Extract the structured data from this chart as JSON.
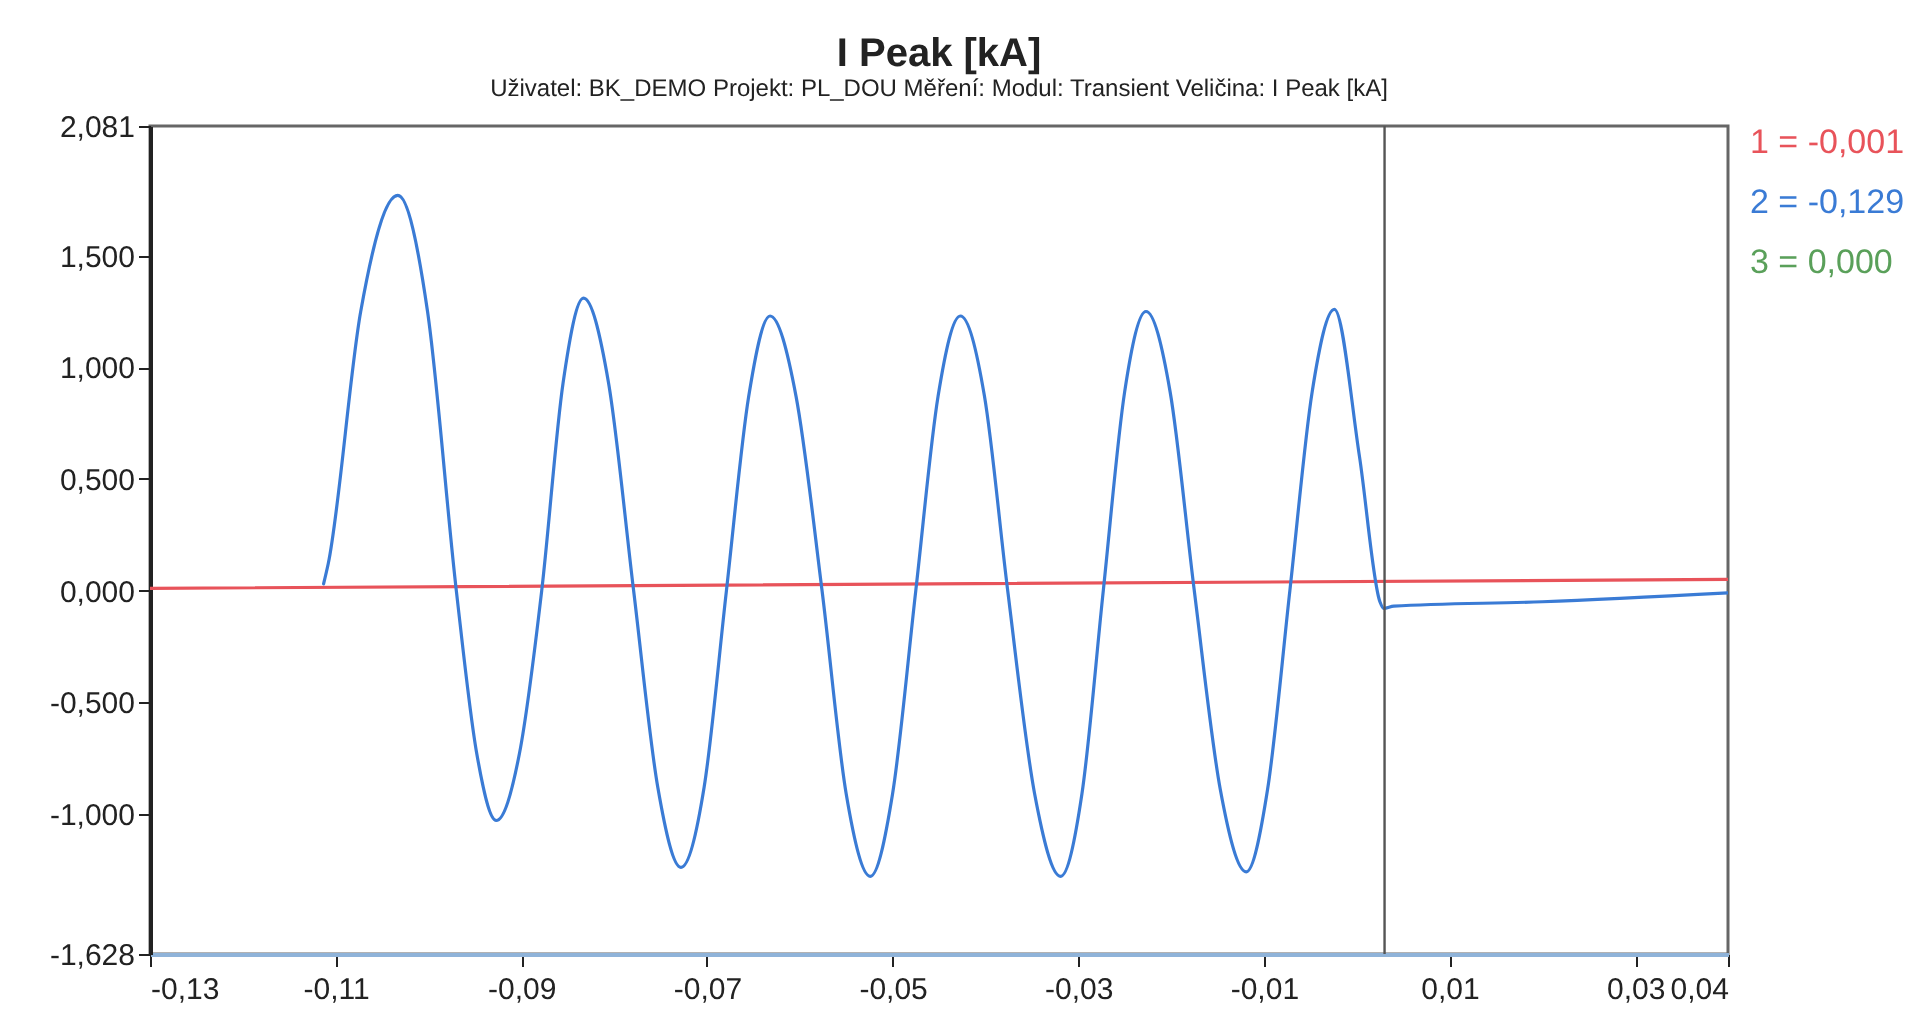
{
  "chart_data": {
    "type": "line",
    "title": "I Peak [kA]",
    "subtitle": "Uživatel: BK_DEMO   Projekt: PL_DOU   Měření:    Modul: Transient   Veličina: I Peak [kA]",
    "xlim": [
      -0.13,
      0.04
    ],
    "xticks": [
      {
        "value": -0.13,
        "label": "-0,13"
      },
      {
        "value": -0.11,
        "label": "-0,11"
      },
      {
        "value": -0.09,
        "label": "-0,09"
      },
      {
        "value": -0.07,
        "label": "-0,07"
      },
      {
        "value": -0.05,
        "label": "-0,05"
      },
      {
        "value": -0.03,
        "label": "-0,03"
      },
      {
        "value": -0.01,
        "label": "-0,01"
      },
      {
        "value": 0.01,
        "label": "0,01"
      },
      {
        "value": 0.03,
        "label": "0,03"
      },
      {
        "value": 0.04,
        "label": "0,04"
      }
    ],
    "ylim": [
      -1.628,
      2.081
    ],
    "yticks": [
      {
        "value": -1.628,
        "label": "-1,628"
      },
      {
        "value": -1.0,
        "label": "-1,000"
      },
      {
        "value": -0.5,
        "label": "-0,500"
      },
      {
        "value": 0,
        "label": "0,000"
      },
      {
        "value": 0.5,
        "label": "0,500"
      },
      {
        "value": 1.0,
        "label": "1,000"
      },
      {
        "value": 1.5,
        "label": "1,500"
      },
      {
        "value": 2.081,
        "label": "2,081"
      }
    ],
    "legend": "right",
    "ref_lines": [
      {
        "axis": "x",
        "value": 0.003,
        "color": "#555555"
      }
    ],
    "series": [
      {
        "name": "1 = -0,001",
        "color": "#e8535a",
        "x": [
          -0.13,
          0.04
        ],
        "values": [
          0.01,
          0.05
        ]
      },
      {
        "name": "2 = -0,129",
        "color": "#3a7bd5",
        "x": [
          -0.1113,
          -0.1108,
          -0.1073,
          -0.1033,
          -0.1001,
          -0.097,
          -0.0948,
          -0.0927,
          -0.0902,
          -0.0878,
          -0.0855,
          -0.0833,
          -0.0806,
          -0.0779,
          -0.0753,
          -0.0728,
          -0.0703,
          -0.0679,
          -0.0655,
          -0.0632,
          -0.0604,
          -0.0576,
          -0.055,
          -0.0524,
          -0.05,
          -0.0475,
          -0.0451,
          -0.0427,
          -0.0401,
          -0.0376,
          -0.0347,
          -0.0319,
          -0.0296,
          -0.0273,
          -0.025,
          -0.0227,
          -0.0201,
          -0.0175,
          -0.0147,
          -0.0119,
          -0.0096,
          -0.0072,
          -0.0048,
          -0.0024,
          0.0003,
          0.0025,
          0.0029,
          0.004,
          0.02,
          0.04
        ],
        "values": [
          0.03,
          0.12,
          1.25,
          1.77,
          1.25,
          0.0,
          -0.73,
          -1.03,
          -0.73,
          0.0,
          0.93,
          1.31,
          0.93,
          0.0,
          -0.88,
          -1.24,
          -0.88,
          0.0,
          0.87,
          1.23,
          0.87,
          0.0,
          -0.91,
          -1.28,
          -0.91,
          0.0,
          0.87,
          1.23,
          0.87,
          0.0,
          -0.91,
          -1.28,
          -0.91,
          0.0,
          0.89,
          1.25,
          0.89,
          0.0,
          -0.89,
          -1.26,
          -0.89,
          0.0,
          0.89,
          1.26,
          0.6,
          -0.05,
          -0.08,
          -0.07,
          -0.05,
          -0.01
        ]
      },
      {
        "name": "3 = 0,000",
        "color": "#5aa05a"
      }
    ]
  }
}
